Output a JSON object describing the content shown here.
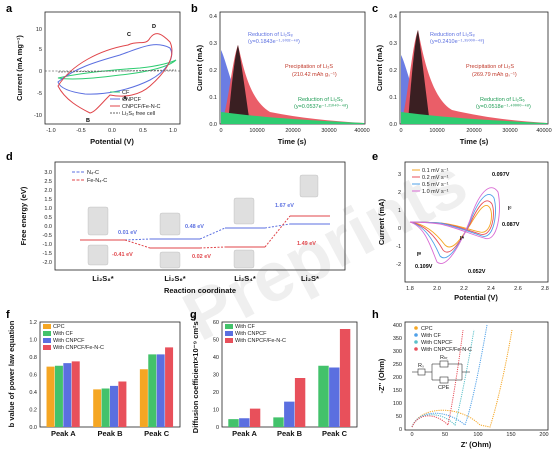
{
  "panel_labels": {
    "a": "a",
    "b": "b",
    "c": "c",
    "d": "d",
    "e": "e",
    "f": "f",
    "g": "g",
    "h": "h"
  },
  "watermark": "Preprints",
  "panel_a": {
    "xlabel": "Potential (V)",
    "ylabel": "Current (mA mg⁻¹)",
    "xticks": [
      "-1.0",
      "-0.5",
      "0.0",
      "0.5",
      "1.0"
    ],
    "yticks": [
      "10",
      "5",
      "0",
      "-5",
      "-10"
    ],
    "peaks": [
      "A",
      "B",
      "C",
      "D"
    ],
    "legend": [
      "CF",
      "CNPCF",
      "CNPCF/Fe-N-C",
      "Li₂S₆ free cell"
    ],
    "colors": [
      "#2ecc71",
      "#5b6fe0",
      "#e0454a",
      "#666666"
    ]
  },
  "panel_b": {
    "xlabel": "Time (s)",
    "ylabel": "Current (mA)",
    "xticks": [
      "0",
      "10000",
      "20000",
      "30000",
      "40000"
    ],
    "yticks": [
      "0.0",
      "0.1",
      "0.2",
      "0.3",
      "0.4"
    ],
    "ann1": [
      "Reduction of Li₂S₈",
      "(y=0.1843e⁻¹·⁹⁰³²⁻⁴⁸)"
    ],
    "ann2": [
      "Precipitation of Li₂S",
      "(210.42 mAh gₛ⁻¹)"
    ],
    "ann3": [
      "Reduction of Li₂S₆",
      "(y=0.0537e⁻¹·²¹⁰⁴⁰⁻⁴⁸)"
    ]
  },
  "panel_c": {
    "xlabel": "Time (s)",
    "ylabel": "Current (mA)",
    "xticks": [
      "0",
      "10000",
      "20000",
      "30000",
      "40000"
    ],
    "yticks": [
      "0.0",
      "0.1",
      "0.2",
      "0.3",
      "0.4"
    ],
    "ann1": [
      "Reduction of Li₂S₈",
      "(y=0.2410e⁻¹·³⁵⁰⁰⁰⁻⁴⁸)"
    ],
    "ann2": [
      "Precipitation of Li₂S",
      "(269.79 mAh gₛ⁻¹)"
    ],
    "ann3": [
      "Reduction of Li₂S₆",
      "(y=0.0518e⁻¹·⁴⁰⁰⁰⁰⁻⁴⁸)"
    ]
  },
  "panel_d": {
    "ylabel": "Free energy (eV)",
    "xlabel": "Reaction coordinate",
    "yticks": [
      "3.0",
      "2.5",
      "2.0",
      "1.5",
      "1.0",
      "0.5",
      "0.0",
      "-0.5",
      "-1.0",
      "-1.5",
      "-2.0"
    ],
    "legend": [
      "N₄-C",
      "Fe-N₄-C"
    ],
    "categories": [
      "Li₂S₈*",
      "Li₂S₆*",
      "Li₂S₄*",
      "Li₂S*"
    ],
    "labels_blue": [
      "0.01 eV",
      "0.48 eV",
      "1.67 eV"
    ],
    "labels_red": [
      "-0.41 eV",
      "0.02 eV",
      "1.49 eV"
    ]
  },
  "panel_e": {
    "xlabel": "Potential (V)",
    "ylabel": "Current (mA)",
    "xticks": [
      "1.8",
      "2.0",
      "2.2",
      "2.4",
      "2.6",
      "2.8"
    ],
    "yticks": [
      "3",
      "2",
      "1",
      "0",
      "-1",
      "-2"
    ],
    "legend": [
      "0.1 mV s⁻¹",
      "0.2 mV s⁻¹",
      "0.5 mV s⁻¹",
      "1.0 mV s⁻¹"
    ],
    "colors": [
      "#f5a623",
      "#e8505b",
      "#4fa0e8",
      "#d96bd4"
    ],
    "peaks": [
      "Iᴮ",
      "Iᴬ",
      "Iᶜ"
    ],
    "shifts": [
      "0.097V",
      "0.087V",
      "0.052V",
      "0.109V"
    ]
  },
  "panel_f": {
    "ylabel": "b value of power law equation",
    "yticks": [
      "1.2",
      "1.0",
      "0.8",
      "0.6",
      "0.4",
      "0.2",
      "0.0"
    ]
  },
  "panel_g": {
    "ylabel": "Diffusion coefficient×10⁻⁹ cm²s⁻¹",
    "yticks": [
      "60",
      "50",
      "40",
      "30",
      "20",
      "10",
      "0"
    ]
  },
  "panel_h": {
    "xlabel": "Z' (Ohm)",
    "ylabel": "-Z'' (Ohm)",
    "xticks": [
      "0",
      "50",
      "100",
      "150",
      "200"
    ],
    "yticks": [
      "400",
      "350",
      "300",
      "250",
      "200",
      "150",
      "100",
      "50",
      "0"
    ],
    "legend": [
      "CPC",
      "With CF",
      "With CNPCF",
      "With CNPCF/Fe-N-C"
    ],
    "colors": [
      "#f5a623",
      "#4fa0e8",
      "#5bc0c9",
      "#e8505b"
    ],
    "circuit_labels": [
      "Rₛ",
      "Rₕₜ",
      "CPE"
    ]
  },
  "chart_data": [
    {
      "type": "bar",
      "panel": "f",
      "ylabel": "b value of power law equation",
      "ylim": [
        0,
        1.2
      ],
      "categories": [
        "Peak A",
        "Peak B",
        "Peak C"
      ],
      "series": [
        {
          "name": "CPC",
          "values": [
            0.69,
            0.43,
            0.66
          ],
          "color": "#f5a623"
        },
        {
          "name": "With CF",
          "values": [
            0.7,
            0.44,
            0.83
          ],
          "color": "#43c26b"
        },
        {
          "name": "With CNPCF",
          "values": [
            0.73,
            0.47,
            0.83
          ],
          "color": "#5b6fe0"
        },
        {
          "name": "With CNPCF/Fe-N-C",
          "values": [
            0.75,
            0.52,
            0.91
          ],
          "color": "#e8505b"
        }
      ]
    },
    {
      "type": "bar",
      "panel": "g",
      "ylabel": "Diffusion coefficient×10⁻⁹ cm²s⁻¹",
      "ylim": [
        0,
        60
      ],
      "categories": [
        "Peak A",
        "Peak B",
        "Peak C"
      ],
      "series": [
        {
          "name": "With CF",
          "values": [
            4.5,
            5.5,
            35
          ],
          "color": "#43c26b"
        },
        {
          "name": "With CNPCF",
          "values": [
            5.0,
            14.5,
            34
          ],
          "color": "#5b6fe0"
        },
        {
          "name": "With CNPCF/Fe-N-C",
          "values": [
            10.5,
            28,
            56
          ],
          "color": "#e8505b"
        }
      ]
    }
  ]
}
